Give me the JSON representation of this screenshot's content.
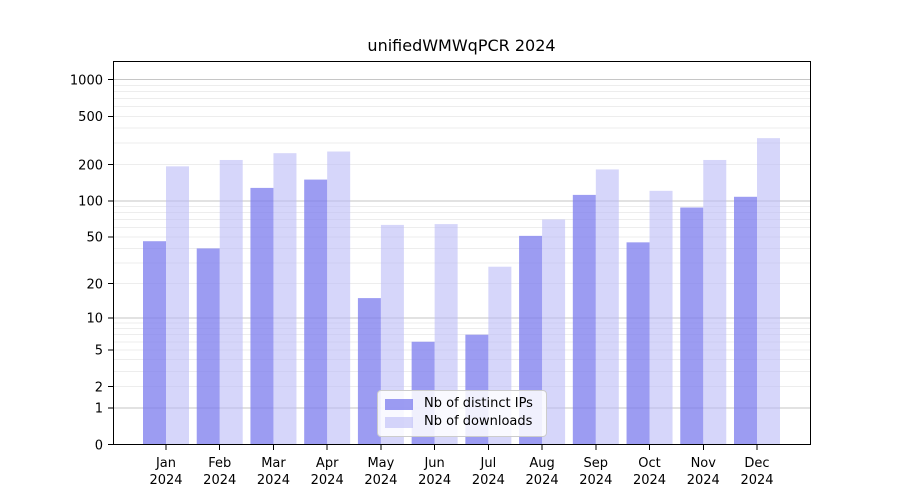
{
  "chart_data": {
    "type": "bar",
    "title": "unifiedWMWqPCR 2024",
    "months": [
      "Jan",
      "Feb",
      "Mar",
      "Apr",
      "May",
      "Jun",
      "Jul",
      "Aug",
      "Sep",
      "Oct",
      "Nov",
      "Dec"
    ],
    "year_label": "2024",
    "series": [
      {
        "name": "Nb of distinct IPs",
        "color": "#7b7bee",
        "opacity": 0.75,
        "values": [
          46,
          40,
          128,
          150,
          15,
          6,
          7,
          51,
          112,
          45,
          88,
          108
        ]
      },
      {
        "name": "Nb of downloads",
        "color": "#bbbbf6",
        "opacity": 0.6,
        "values": [
          193,
          218,
          248,
          256,
          63,
          64,
          28,
          70,
          182,
          121,
          218,
          330
        ]
      }
    ],
    "y_ticks": [
      0,
      1,
      2,
      5,
      10,
      20,
      50,
      100,
      200,
      500,
      1000
    ],
    "y_scale": "log1p",
    "y_major_gridlines": [
      1,
      10,
      100,
      1000
    ],
    "grid": true,
    "legend_position": "bottom-center",
    "axis_color": "#000000",
    "grid_minor_color": "#ededed",
    "grid_major_color": "#c6c6c6",
    "background_color": "#ffffff"
  }
}
